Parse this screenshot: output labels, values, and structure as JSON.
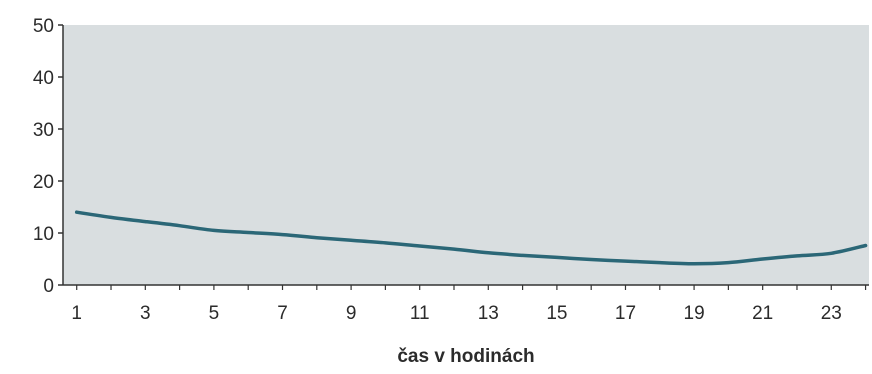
{
  "chart_data": {
    "type": "line",
    "title": "",
    "xlabel": "čas v hodinách",
    "ylabel": "",
    "xlim": [
      0.6,
      24.1
    ],
    "ylim": [
      0,
      50
    ],
    "x_ticks": [
      1,
      3,
      5,
      7,
      9,
      11,
      13,
      15,
      17,
      19,
      21,
      23
    ],
    "y_ticks": [
      0,
      10,
      20,
      30,
      40,
      50
    ],
    "grid": false,
    "legend": "none",
    "colors": {
      "plot_background": "#d9dee0",
      "line": "#2b6777",
      "axis": "#333333"
    },
    "series": [
      {
        "x": [
          1,
          2,
          3,
          4,
          5,
          6,
          7,
          8,
          9,
          10,
          11,
          12,
          13,
          14,
          15,
          16,
          17,
          18,
          19,
          20,
          21,
          22,
          23,
          24
        ],
        "values": [
          14.0,
          13.0,
          12.2,
          11.4,
          10.5,
          10.1,
          9.7,
          9.1,
          8.6,
          8.1,
          7.5,
          6.9,
          6.2,
          5.7,
          5.3,
          4.9,
          4.6,
          4.3,
          4.1,
          4.3,
          5.0,
          5.6,
          6.1,
          7.6
        ]
      }
    ]
  }
}
